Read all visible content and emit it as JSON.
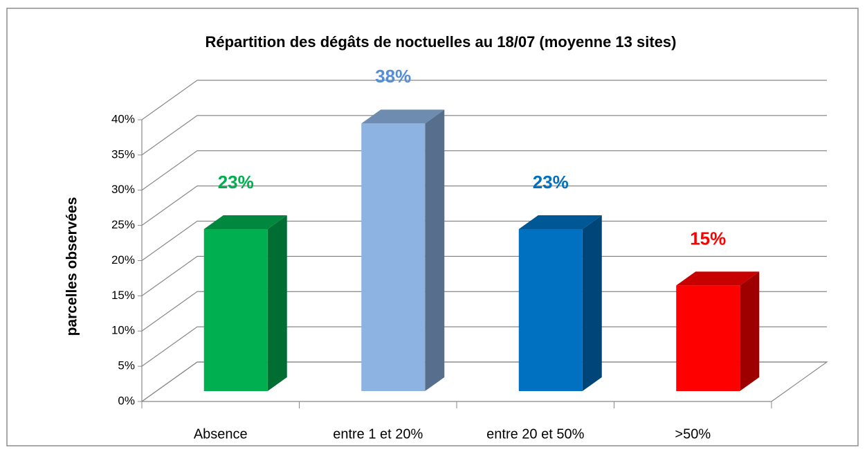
{
  "chart_data": {
    "type": "bar3d",
    "title": "Répartition des dégâts de noctuelles  au 18/07  (moyenne 13 sites)",
    "y_label": "parcelles  observées",
    "categories": [
      "Absence",
      "entre 1 et 20%",
      "entre 20 et 50%",
      ">50%"
    ],
    "values": [
      23,
      38,
      23,
      15
    ],
    "value_labels": [
      "23%",
      "38%",
      "23%",
      "15%"
    ],
    "colors": [
      "#00b050",
      "#8db3e2",
      "#0070c0",
      "#ff0000"
    ],
    "label_colors": [
      "#00b050",
      "#558ed5",
      "#0070c0",
      "#ff0000"
    ],
    "ylim": [
      0,
      40
    ],
    "yticks": [
      {
        "value": 0,
        "label": "0%"
      },
      {
        "value": 5,
        "label": "5%"
      },
      {
        "value": 10,
        "label": "10%"
      },
      {
        "value": 15,
        "label": "15%"
      },
      {
        "value": 20,
        "label": "20%"
      },
      {
        "value": 25,
        "label": "25%"
      },
      {
        "value": 30,
        "label": "30%"
      },
      {
        "value": 35,
        "label": "35%"
      },
      {
        "value": 40,
        "label": "40%"
      }
    ],
    "grid": true
  }
}
